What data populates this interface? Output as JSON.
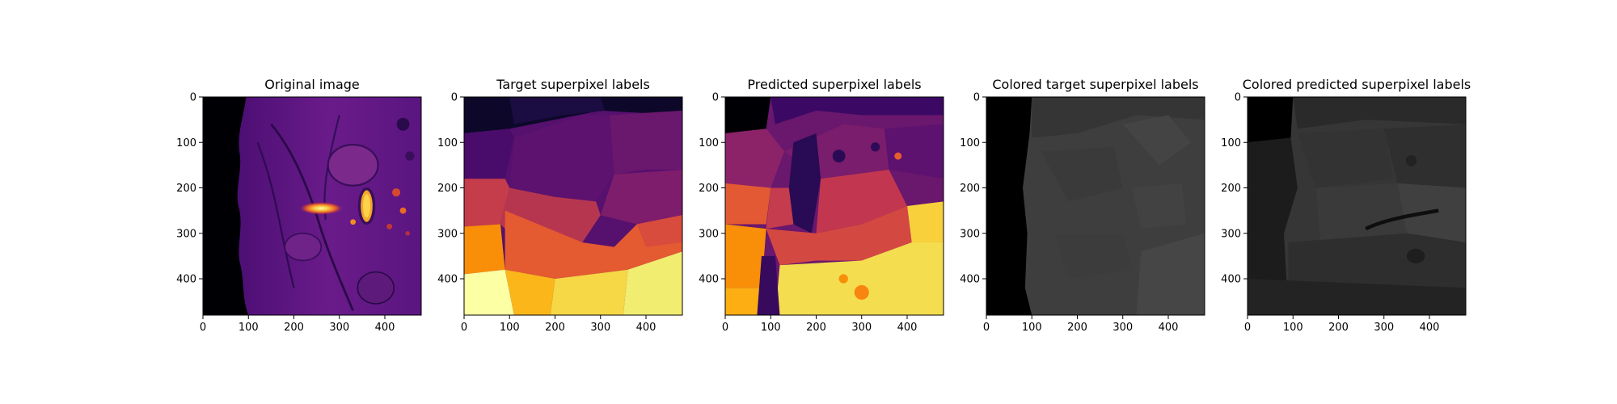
{
  "chart_data": [
    {
      "type": "heatmap",
      "title": "Original image",
      "colormap": "inferno",
      "xlim": [
        0,
        480
      ],
      "ylim": [
        480,
        0
      ],
      "xticks": [
        0,
        100,
        200,
        300,
        400
      ],
      "yticks": [
        0,
        100,
        200,
        300,
        400
      ],
      "xticklabels": [
        "0",
        "100",
        "200",
        "300",
        "400"
      ],
      "yticklabels": [
        "0",
        "100",
        "200",
        "300",
        "400"
      ]
    },
    {
      "type": "heatmap",
      "title": "Target superpixel labels",
      "colormap": "inferno",
      "xlim": [
        0,
        480
      ],
      "ylim": [
        480,
        0
      ],
      "xticks": [
        0,
        100,
        200,
        300,
        400
      ],
      "yticks": [
        0,
        100,
        200,
        300,
        400
      ],
      "xticklabels": [
        "0",
        "100",
        "200",
        "300",
        "400"
      ],
      "yticklabels": [
        "0",
        "100",
        "200",
        "300",
        "400"
      ]
    },
    {
      "type": "heatmap",
      "title": "Predicted superpixel labels",
      "colormap": "inferno",
      "xlim": [
        0,
        480
      ],
      "ylim": [
        480,
        0
      ],
      "xticks": [
        0,
        100,
        200,
        300,
        400
      ],
      "yticks": [
        0,
        100,
        200,
        300,
        400
      ],
      "xticklabels": [
        "0",
        "100",
        "200",
        "300",
        "400"
      ],
      "yticklabels": [
        "0",
        "100",
        "200",
        "300",
        "400"
      ]
    },
    {
      "type": "heatmap",
      "title": "Colored target superpixel labels",
      "colormap": "gray",
      "xlim": [
        0,
        480
      ],
      "ylim": [
        480,
        0
      ],
      "xticks": [
        0,
        100,
        200,
        300,
        400
      ],
      "yticks": [
        0,
        100,
        200,
        300,
        400
      ],
      "xticklabels": [
        "0",
        "100",
        "200",
        "300",
        "400"
      ],
      "yticklabels": [
        "0",
        "100",
        "200",
        "300",
        "400"
      ]
    },
    {
      "type": "heatmap",
      "title": "Colored predicted superpixel labels",
      "colormap": "gray",
      "xlim": [
        0,
        480
      ],
      "ylim": [
        480,
        0
      ],
      "xticks": [
        0,
        100,
        200,
        300,
        400
      ],
      "yticks": [
        0,
        100,
        200,
        300,
        400
      ],
      "xticklabels": [
        "0",
        "100",
        "200",
        "300",
        "400"
      ],
      "yticklabels": [
        "0",
        "100",
        "200",
        "300",
        "400"
      ]
    }
  ]
}
